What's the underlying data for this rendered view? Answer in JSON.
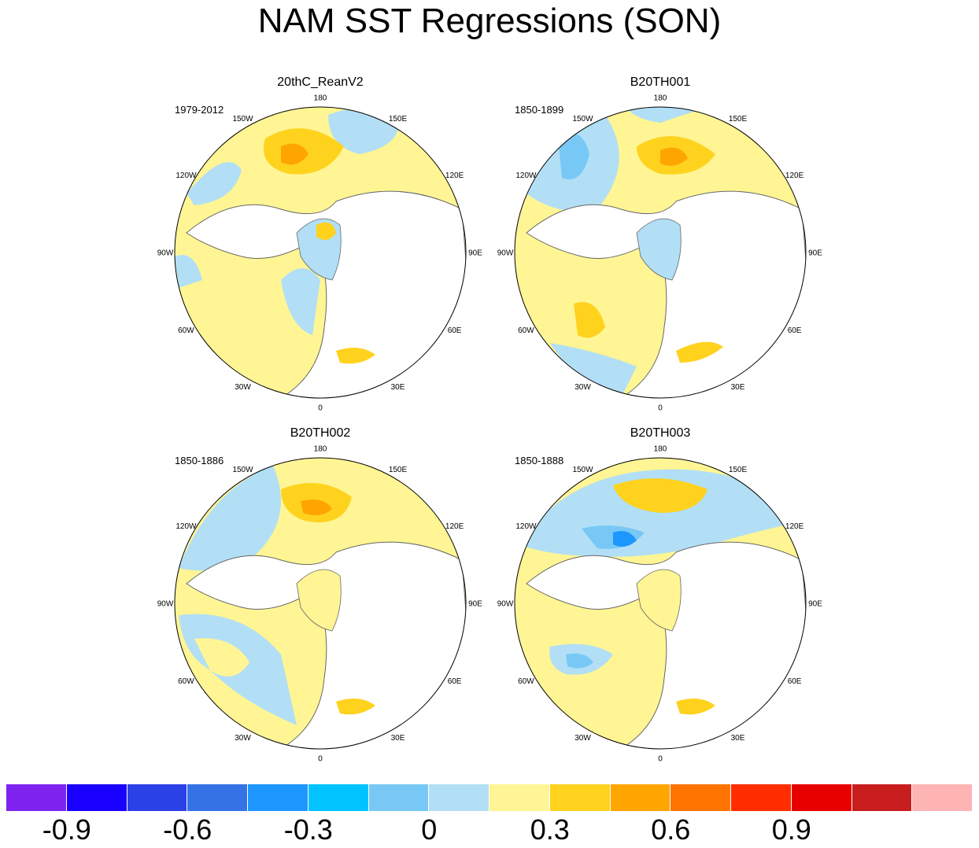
{
  "chart_data": {
    "type": "heatmap",
    "title": "NAM SST Regressions (SON)",
    "projection": "polar stereographic, North Pole",
    "meridian_labels": [
      "180",
      "150E",
      "120E",
      "90E",
      "60E",
      "30E",
      "0",
      "30W",
      "60W",
      "90W",
      "120W",
      "150W"
    ],
    "panels": [
      {
        "title": "20thC_ReanV2",
        "period": "1979-2012"
      },
      {
        "title": "B20TH001",
        "period": "1850-1899"
      },
      {
        "title": "B20TH002",
        "period": "1850-1886"
      },
      {
        "title": "B20TH003",
        "period": "1850-1888"
      }
    ],
    "colorbar": {
      "colors": [
        "#7f24f0",
        "#1a00ff",
        "#2b41e8",
        "#3572e6",
        "#1e96ff",
        "#00c3ff",
        "#78c8f5",
        "#b2dff5",
        "#fff594",
        "#ffd21e",
        "#ffa500",
        "#ff7300",
        "#ff2d00",
        "#e60000",
        "#c81e1e",
        "#ffb4b4"
      ],
      "tick_labels": [
        "-0.9",
        "-0.6",
        "-0.3",
        "0",
        "0.3",
        "0.6",
        "0.9"
      ],
      "tick_values": [
        -0.9,
        -0.6,
        -0.3,
        0,
        0.3,
        0.6,
        0.9
      ],
      "levels_min": -1.05,
      "level_step": 0.15
    }
  }
}
